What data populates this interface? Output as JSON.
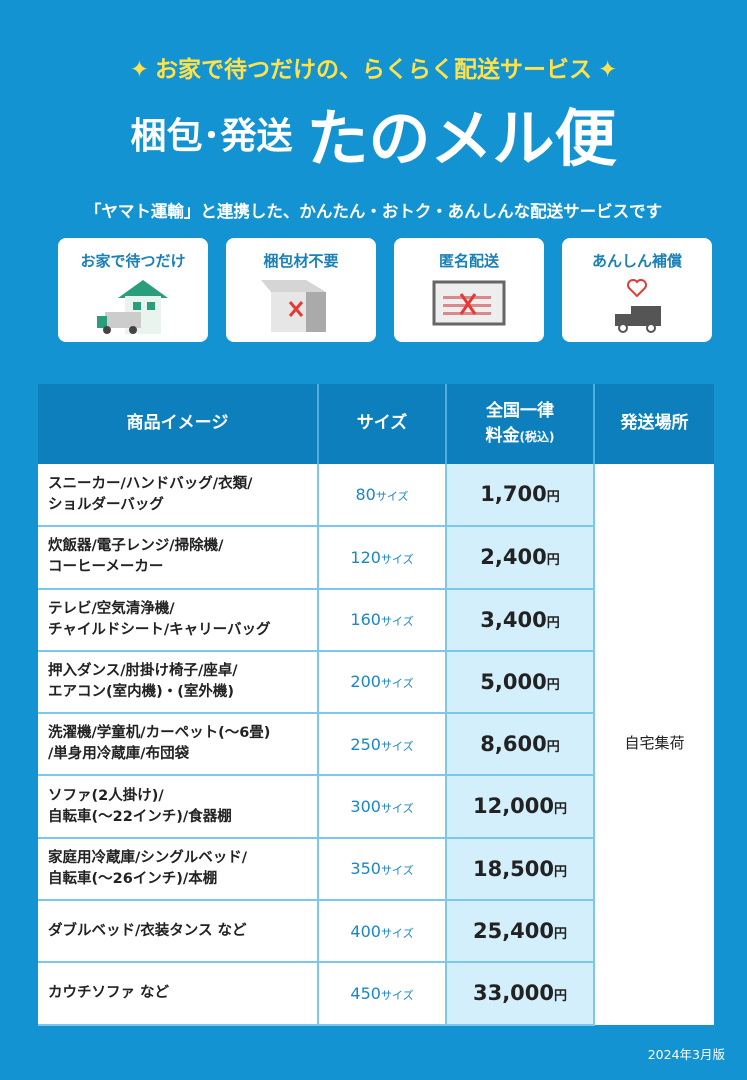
{
  "header": {
    "tagline": "お家で待つだけの、らくらく配送サービス",
    "title_small": "梱包･発送",
    "title_big": "たのメル便",
    "subtitle": "「ヤマト運輸」と連携した、かんたん・おトク・あんしんな配送サービスです"
  },
  "features": [
    {
      "label": "お家で待つだけ",
      "icon": "house-truck-icon"
    },
    {
      "label": "梱包材不要",
      "icon": "box-x-icon"
    },
    {
      "label": "匿名配送",
      "icon": "label-x-icon"
    },
    {
      "label": "あんしん補償",
      "icon": "heart-truck-icon"
    }
  ],
  "table": {
    "headers": {
      "item": "商品イメージ",
      "size": "サイズ",
      "price_line1": "全国一律",
      "price_line2": "料金",
      "price_tax": "(税込)",
      "place": "発送場所"
    },
    "place": "自宅集荷",
    "size_unit": "サイズ",
    "yen": "円",
    "rows": [
      {
        "line1": "スニーカー/ハンドバッグ/衣類/",
        "line2": "ショルダーバッグ",
        "size": "80",
        "price": "1,700"
      },
      {
        "line1": "炊飯器/電子レンジ/掃除機/",
        "line2": "コーヒーメーカー",
        "size": "120",
        "price": "2,400"
      },
      {
        "line1": "テレビ/空気清浄機/",
        "line2": "チャイルドシート/キャリーバッグ",
        "size": "160",
        "price": "3,400"
      },
      {
        "line1": "押入ダンス/肘掛け椅子/座卓/",
        "line2": "エアコン(室内機)・(室外機)",
        "size": "200",
        "price": "5,000"
      },
      {
        "line1": "洗濯機/学童机/カーペット(～6畳)",
        "line2": "/単身用冷蔵庫/布団袋",
        "size": "250",
        "price": "8,600"
      },
      {
        "line1": "ソファ(2人掛け)/",
        "line2": "自転車(～22インチ)/食器棚",
        "size": "300",
        "price": "12,000"
      },
      {
        "line1": "家庭用冷蔵庫/シングルベッド/",
        "line2": "自転車(～26インチ)/本棚",
        "size": "350",
        "price": "18,500"
      },
      {
        "line1": "ダブルベッド/衣装タンス など",
        "line2": "",
        "size": "400",
        "price": "25,400"
      },
      {
        "line1": "カウチソファ など",
        "line2": "",
        "size": "450",
        "price": "33,000"
      }
    ]
  },
  "footer": {
    "version": "2024年3月版"
  },
  "colors": {
    "background": "#1493d3",
    "header": "#0d7fbd",
    "price_cell": "#d4effc",
    "accent": "#ffe14a"
  }
}
